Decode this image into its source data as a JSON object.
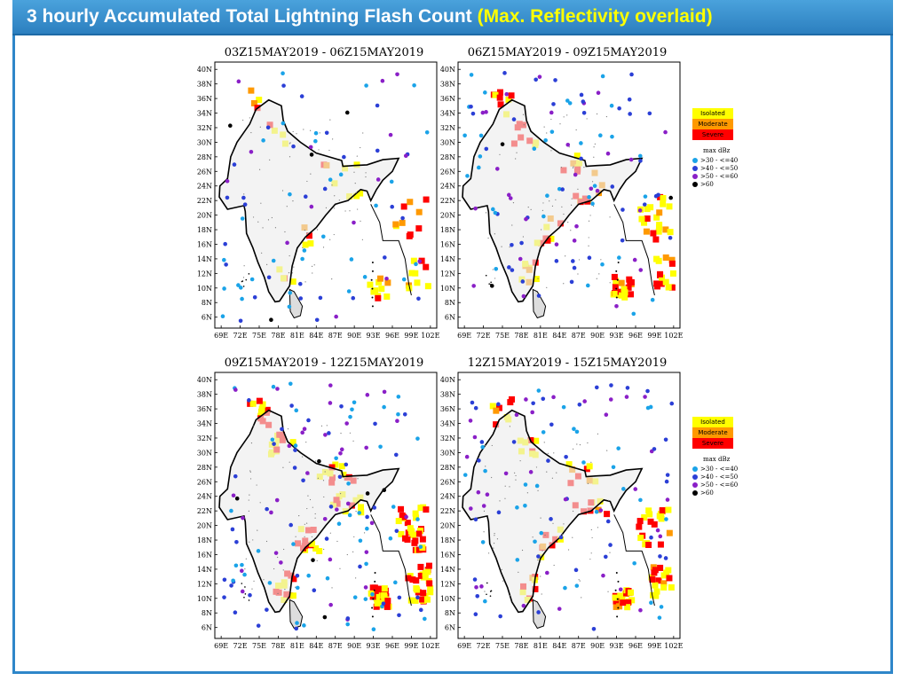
{
  "header": {
    "title_main": "3 hourly Accumulated Total Lightning Flash Count",
    "title_sub": "(Max. Reflectivity overlaid)"
  },
  "colors": {
    "isolated": "#ffff00",
    "moderate": "#ff9900",
    "severe": "#ff0000",
    "dbz_30_40": "#1aa3e8",
    "dbz_40_50": "#2b3fd6",
    "dbz_50_60": "#8a1fc7",
    "dbz_gt_60": "#000000"
  },
  "axes": {
    "lat_labels": [
      "40N",
      "38N",
      "36N",
      "34N",
      "32N",
      "30N",
      "28N",
      "26N",
      "24N",
      "22N",
      "20N",
      "18N",
      "16N",
      "14N",
      "12N",
      "10N",
      "8N",
      "6N"
    ],
    "lon_labels": [
      "69E",
      "72E",
      "75E",
      "78E",
      "81E",
      "84E",
      "87E",
      "90E",
      "93E",
      "96E",
      "99E",
      "102E"
    ]
  },
  "panels": [
    {
      "title": "03Z15MAY2019 - 06Z15MAY2019",
      "intensity": 1
    },
    {
      "title": "06Z15MAY2019 - 09Z15MAY2019",
      "intensity": 2
    },
    {
      "title": "09Z15MAY2019 - 12Z15MAY2019",
      "intensity": 3
    },
    {
      "title": "12Z15MAY2019 - 15Z15MAY2019",
      "intensity": 2
    }
  ],
  "legend": {
    "categories": [
      "Isolated",
      "Moderate",
      "Severe"
    ],
    "dbz_title": "max dBz",
    "dbz_ranges": [
      ">30 - <=40",
      ">40 - <=50",
      ">50 - <=60",
      ">60"
    ]
  }
}
